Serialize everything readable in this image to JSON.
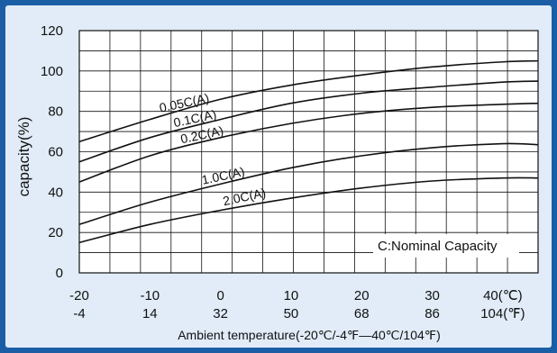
{
  "chart_data": {
    "type": "line",
    "xlabel": "Ambient temperature(-20℃/-4℉—40℃/104℉)",
    "ylabel": "capacity(%)",
    "ylim": [
      0,
      120
    ],
    "xlim": [
      -20,
      45
    ],
    "grid": true,
    "y_ticks": [
      "0",
      "20",
      "40",
      "60",
      "80",
      "100",
      "120"
    ],
    "x_ticks_celsius": [
      "-20",
      "-10",
      "0",
      "10",
      "20",
      "30",
      "40(℃)"
    ],
    "x_ticks_fahrenheit": [
      "-4",
      "14",
      "32",
      "50",
      "68",
      "86",
      "104(℉)"
    ],
    "x_tick_values": [
      -20,
      -10,
      0,
      10,
      20,
      30,
      40
    ],
    "annotation": "C:Nominal Capacity",
    "series": [
      {
        "name": "0.05C(A)",
        "x": [
          -20,
          -10,
          0,
          10,
          20,
          30,
          40,
          45
        ],
        "y": [
          65,
          76,
          86,
          93,
          98,
          102,
          104.5,
          105
        ]
      },
      {
        "name": "0.1C(A)",
        "x": [
          -20,
          -10,
          0,
          10,
          20,
          30,
          40,
          45
        ],
        "y": [
          55,
          67,
          76,
          84,
          89,
          92,
          94.5,
          95
        ]
      },
      {
        "name": "0.2C(A)",
        "x": [
          -20,
          -10,
          0,
          10,
          20,
          30,
          40,
          45
        ],
        "y": [
          45,
          58,
          67,
          74,
          79,
          82,
          83.5,
          84
        ]
      },
      {
        "name": "1.0C(A)",
        "x": [
          -20,
          -10,
          0,
          10,
          20,
          30,
          40,
          45
        ],
        "y": [
          24,
          35,
          44,
          52,
          58,
          62,
          64,
          63.5
        ]
      },
      {
        "name": "2.0C(A)",
        "x": [
          -20,
          -10,
          0,
          10,
          20,
          30,
          40,
          45
        ],
        "y": [
          15,
          24,
          31,
          37,
          42,
          45.5,
          47,
          47
        ]
      }
    ]
  }
}
